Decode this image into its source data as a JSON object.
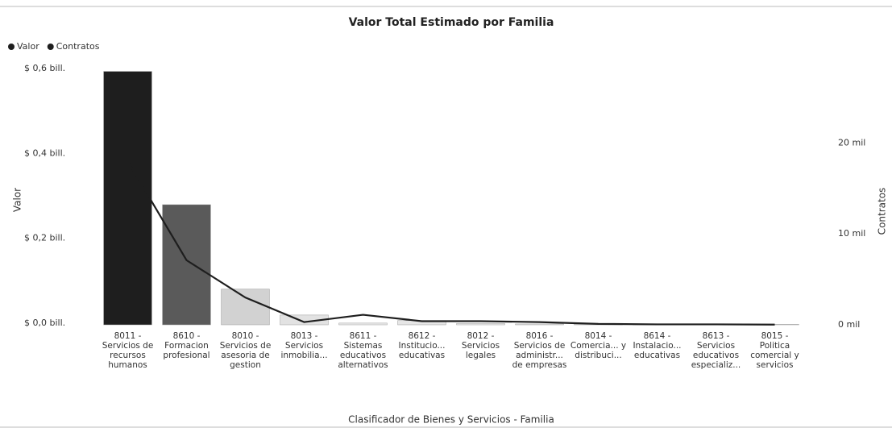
{
  "chart_data": {
    "type": "combo",
    "title": "Valor Total Estimado por Familia",
    "x_label": "Clasificador de Bienes y Servicios - Familia",
    "y_label": "Valor",
    "y2_label": "Contratos",
    "categories": [
      "8011 - Servicios de recursos humanos",
      "8610 - Formacion profesional",
      "8010 - Servicios de asesoria de gestion",
      "8013 - Servicios inmobilia...",
      "8611 - Sistemas educativos alternativos",
      "8612 - Institucio... educativas",
      "8012 - Servicios legales",
      "8016 - Servicios de administr... de empresas",
      "8014 - Comercia... y distribuci...",
      "8614 - Instalacio... educativas",
      "8613 - Servicios educativos especializ...",
      "8015 - Politica comercial y servicios"
    ],
    "series": [
      {
        "name": "Valor",
        "type": "bar",
        "color": "#1e1e1e",
        "colors": [
          "#1e1e1e",
          "#5a5a5a",
          "#d2d2d2",
          "#e2e2e2",
          "#ececec",
          "#e6e6e6",
          "#efefef",
          "#f0f0f0",
          "#f0f0f0",
          "#f2f2f2",
          "#f2f2f2",
          "#f2f2f2"
        ],
        "values": [
          0.597,
          0.283,
          0.084,
          0.023,
          0.004,
          0.01,
          0.003,
          0.002,
          0.002,
          0.001,
          0.001,
          0.001
        ]
      },
      {
        "name": "Contratos",
        "type": "line",
        "axis": "y2",
        "color": "#1e1e1e",
        "values": [
          18,
          7.1,
          3,
          0.3,
          1.1,
          0.4,
          0.4,
          0.3,
          0.1,
          0.05,
          0.05,
          0.02
        ]
      }
    ],
    "ylim": [
      0,
      0.6
    ],
    "yticks": [
      {
        "value": 0,
        "label": "$ 0,0 bill."
      },
      {
        "value": 0.2,
        "label": "$ 0,2 bill."
      },
      {
        "value": 0.4,
        "label": "$ 0,4 bill."
      },
      {
        "value": 0.6,
        "label": "$ 0,6 bill."
      }
    ],
    "y2lim": [
      0,
      28
    ],
    "y2ticks": [
      {
        "value": 0,
        "label": "0 mil"
      },
      {
        "value": 10,
        "label": "10 mil"
      },
      {
        "value": 20,
        "label": "20 mil"
      }
    ],
    "grid": false,
    "legend": "top-left"
  }
}
